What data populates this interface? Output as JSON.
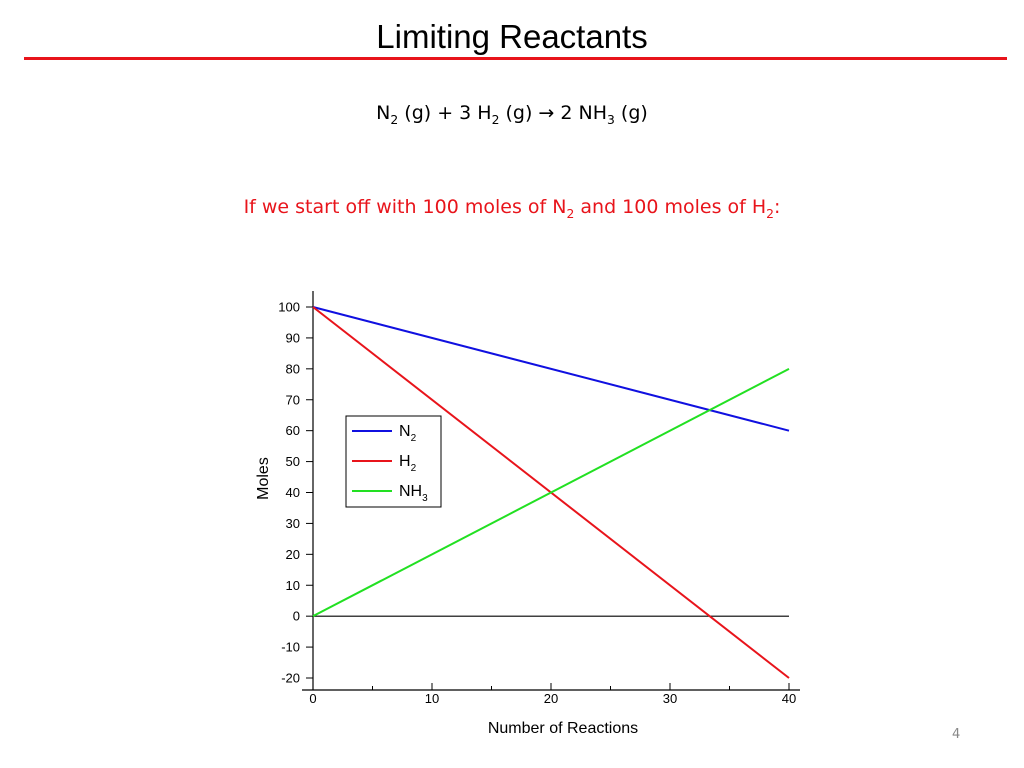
{
  "slide": {
    "title": "Limiting Reactants",
    "equation": {
      "n2_lead": "N",
      "n2_sub": "2",
      "part2": " (g) + 3 H",
      "h2_sub": "2",
      "part3": " (g) ",
      "arrow": "→",
      "part4": " 2 NH",
      "nh3_sub": "3",
      "part5": " (g)"
    },
    "subtitle": {
      "part1": "If we start off with 100 moles of N",
      "n2_sub": "2",
      "part2": " and 100 moles of H",
      "h2_sub": "2",
      "part3": ":"
    },
    "page_number": "4",
    "accent_color": "#e8141b"
  },
  "chart_data": {
    "type": "line",
    "xlabel": "Number of Reactions",
    "ylabel": "Moles",
    "xlim": [
      0,
      40
    ],
    "ylim": [
      -20,
      100
    ],
    "x_ticks": [
      0,
      10,
      20,
      30,
      40
    ],
    "y_ticks": [
      -20,
      -10,
      0,
      10,
      20,
      30,
      40,
      50,
      60,
      70,
      80,
      90,
      100
    ],
    "grid": false,
    "zero_line": true,
    "legend_position": "upper-left",
    "series": [
      {
        "name": "N",
        "name_sub": "2",
        "color": "#1010e0",
        "x": [
          0,
          40
        ],
        "y": [
          100,
          60
        ]
      },
      {
        "name": "H",
        "name_sub": "2",
        "color": "#e8141b",
        "x": [
          0,
          40
        ],
        "y": [
          100,
          -20
        ]
      },
      {
        "name": "NH",
        "name_sub": "3",
        "color": "#22e022",
        "x": [
          0,
          40
        ],
        "y": [
          0,
          80
        ]
      }
    ]
  }
}
